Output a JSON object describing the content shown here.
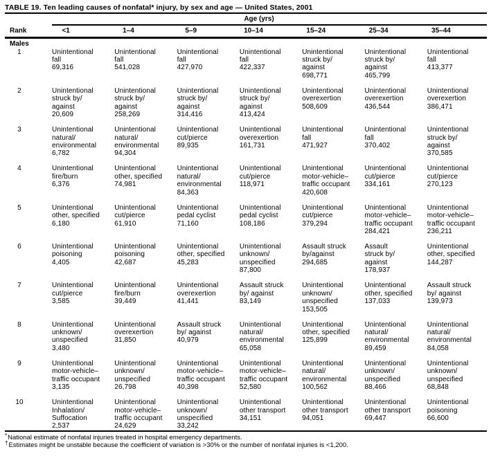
{
  "title": "TABLE 19. Ten leading causes of nonfatal* injury, by sex and age — United States, 2001",
  "header": {
    "age_span_label": "Age (yrs)",
    "rank_label": "Rank",
    "age_columns": [
      "<1",
      "1–4",
      "5–9",
      "10–14",
      "15–24",
      "25–34",
      "35–44"
    ]
  },
  "section_label": "Males",
  "rows": [
    {
      "rank": "1",
      "cells": [
        "Unintentional\nfall\n69,316",
        "Unintentional\nfall\n541,028",
        "Unintentional\nfall\n427,970",
        "Unintentional\nfall\n422,337",
        "Unintentional\nstruck by/\nagainst\n698,771",
        "Unintentional\nstruck by/\nagainst\n465,799",
        "Unintentional\nfall\n413,377"
      ]
    },
    {
      "rank": "2",
      "cells": [
        "Unintentional\nstruck by/\nagainst\n20,609",
        "Unintentional\nstruck by/\nagainst\n258,269",
        "Unintentional\nstruck by/\nagainst\n314,416",
        "Unintentional\nstruck by/\nagainst\n413,424",
        "Unintentional\noverexertion\n508,609",
        "Unintentional\noverexertion\n436,544",
        "Unintentional\noverexertion\n386,471"
      ]
    },
    {
      "rank": "3",
      "cells": [
        "Unintentional\nnatural/\nenvironmental\n6,782",
        "Unintentional\nnatural/\nenvironmental\n94,304",
        "Unintentional\ncut/pierce\n89,935",
        "Unintentional\noverexertion\n161,731",
        "Unintentional\nfall\n471,927",
        "Unintentional\nfall\n370,402",
        "Unintentional\nstruck by/\nagainst\n370,585"
      ]
    },
    {
      "rank": "4",
      "cells": [
        "Unintentional\nfire/burn\n6,376",
        "Unintentional\nother, specified\n74,981",
        "Unintentional\nnatural/\nenvironmental\n84,363",
        "Unintentional\ncut/pierce\n118,971",
        "Unintentional\nmotor-vehicle–\ntraffic occupant\n420,608",
        "Unintentional\ncut/pierce\n334,161",
        "Unintentional\ncut/pierce\n270,123"
      ]
    },
    {
      "rank": "5",
      "cells": [
        "Unintentional\nother, specified\n6,180",
        "Unintentional\ncut/pierce\n61,910",
        "Unintentional\npedal cyclist\n71,160",
        "Unintentional\npedal cyclist\n108,186",
        "Unintentional\ncut/pierce\n379,294",
        "Unintentional\nmotor-vehicle–\ntraffic occupant\n284,421",
        "Unintentional\nmotor-vehicle–\ntraffic occupant\n236,211"
      ]
    },
    {
      "rank": "6",
      "cells": [
        "Unintentional\npoisoning\n4,405",
        "Unintentional\npoisoning\n42,687",
        "Unintentional\nother, specified\n45,283",
        "Unintentional\nunknown/\nunspecified\n87,800",
        "Assault struck\nby/against\n294,685",
        "Assault\nstruck by/\nagainst\n178,937",
        "Unintentional\nother, specified\n144,287"
      ]
    },
    {
      "rank": "7",
      "cells": [
        "Unintentional\ncut/pierce\n3,585",
        "Unintentional\nfire/burn\n39,449",
        "Unintentional\noverexertion\n41,441",
        "Assault struck\nby/ against\n83,149",
        "Unintentional\nunknown/\nunspecified\n153,505",
        "Unintentional\nother, specified\n137,033",
        "Assault struck\nby/ against\n139,973"
      ]
    },
    {
      "rank": "8",
      "cells": [
        "Unintentional\nunknown/\nunspecified\n3,480",
        "Unintentional\noverexertion\n31,850",
        "Assault struck\nby/ against\n40,979",
        "Unintentional\nnatural/\nenvironmental\n65,058",
        "Unintentional\nother, specified\n125,899",
        "Unintentional\nnatural/\nenvironmental\n89,459",
        "Unintentional\nnatural/\nenvironmental\n84,058"
      ]
    },
    {
      "rank": "9",
      "cells": [
        "Unintentional\nmotor-vehicle–\ntraffic occupant\n3,135",
        "Unintentional\nunknown/\nunspecified\n26,798",
        "Unintentional\nmotor-vehicle–\ntraffic occupant\n40,398",
        "Unintentional\nmotor-vehicle–\ntraffic occupant\n52,580",
        "Unintentional\nnatural/\nenvironmental\n100,562",
        "Unintentional\nunknown/\nunspecified\n88,466",
        "Unintentional\nunknown/\nunspecified\n68,848"
      ]
    },
    {
      "rank": "10",
      "cells": [
        "Unintentional\nInhalation/\nSuffocation\n2,537",
        "Unintentional\nmotor-vehicle–\ntraffic occupant\n24,629",
        "Unintentional\nunknown/\nunspecified\n33,242",
        "Unintentional\nother transport\n34,151",
        "Unintentional\nother transport\n94,051",
        "Unintentional\nother transport\n69,447",
        "Unintentional\npoisoning\n66,600"
      ]
    }
  ],
  "footnotes": [
    {
      "marker": "*",
      "text": "National estimate of nonfatal injuries treated in hospital emergency departments."
    },
    {
      "marker": "†",
      "text": "Estimates might be unstable because the coefficient of variation is >30% or the number of nonfatal injuries is <1,200."
    }
  ]
}
